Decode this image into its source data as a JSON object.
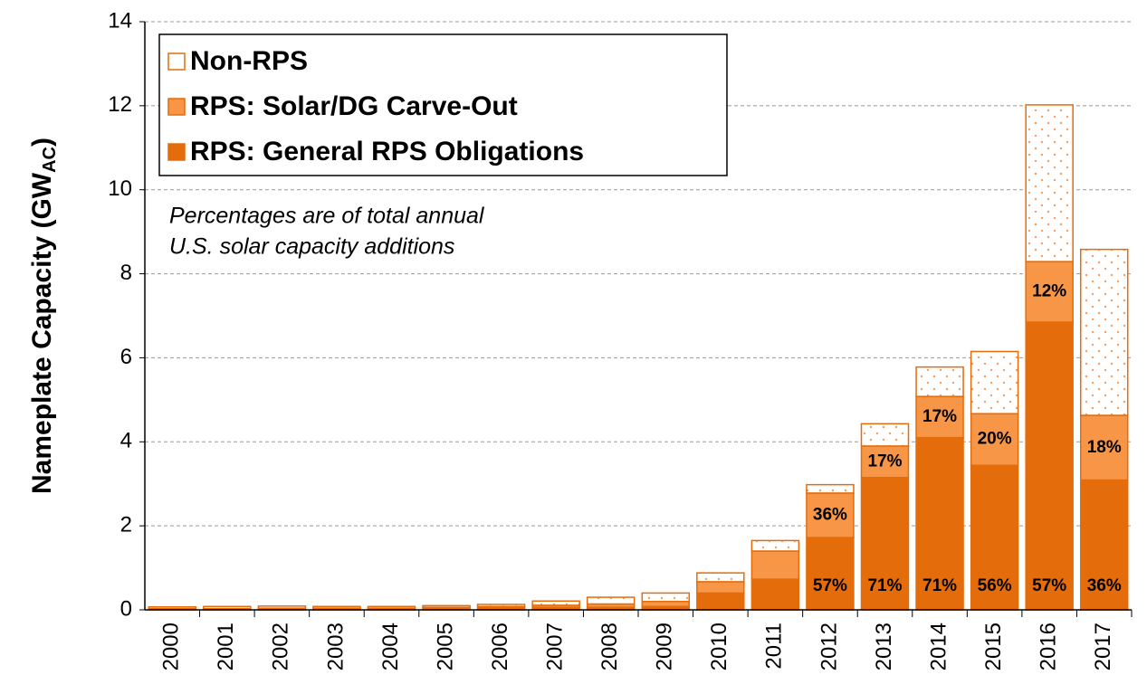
{
  "chart_data": {
    "type": "stacked_bar",
    "ylabel": {
      "text": "Nameplate Capacity (GW",
      "subscript": "AC",
      "suffix": ")"
    },
    "annotation": [
      "Percentages are of total annual",
      "U.S. solar capacity additions"
    ],
    "categories": [
      "2000",
      "2001",
      "2002",
      "2003",
      "2004",
      "2005",
      "2006",
      "2007",
      "2008",
      "2009",
      "2010",
      "2011",
      "2012",
      "2013",
      "2014",
      "2015",
      "2016",
      "2017"
    ],
    "series": [
      {
        "name": "RPS: General RPS Obligations",
        "color": "#e46c0a",
        "values": [
          0.03,
          0.03,
          0.03,
          0.03,
          0.03,
          0.04,
          0.05,
          0.06,
          0.06,
          0.08,
          0.4,
          0.73,
          1.72,
          3.15,
          4.1,
          3.44,
          6.85,
          3.09
        ],
        "share_labels": [
          null,
          null,
          null,
          null,
          null,
          null,
          null,
          null,
          null,
          null,
          null,
          null,
          "57%",
          "71%",
          "71%",
          "56%",
          "57%",
          "36%"
        ]
      },
      {
        "name": "RPS: Solar/DG Carve-Out",
        "color": "#f79646",
        "values": [
          0,
          0,
          0.01,
          0.01,
          0.01,
          0.02,
          0.03,
          0.05,
          0.08,
          0.12,
          0.27,
          0.67,
          1.06,
          0.75,
          0.98,
          1.23,
          1.44,
          1.54
        ],
        "share_labels": [
          null,
          null,
          null,
          null,
          null,
          null,
          null,
          null,
          null,
          null,
          null,
          null,
          "36%",
          "17%",
          "17%",
          "20%",
          "12%",
          "18%"
        ]
      },
      {
        "name": "Non-RPS",
        "color": "#ffffff",
        "pattern": "dots",
        "values": [
          0.04,
          0.05,
          0.05,
          0.04,
          0.04,
          0.04,
          0.05,
          0.1,
          0.16,
          0.2,
          0.21,
          0.25,
          0.2,
          0.53,
          0.7,
          1.48,
          3.73,
          3.95
        ]
      }
    ],
    "ylim": [
      0,
      14
    ],
    "yticks": [
      0,
      2,
      4,
      6,
      8,
      10,
      12,
      14
    ],
    "grid": true,
    "legend": "top-left"
  }
}
